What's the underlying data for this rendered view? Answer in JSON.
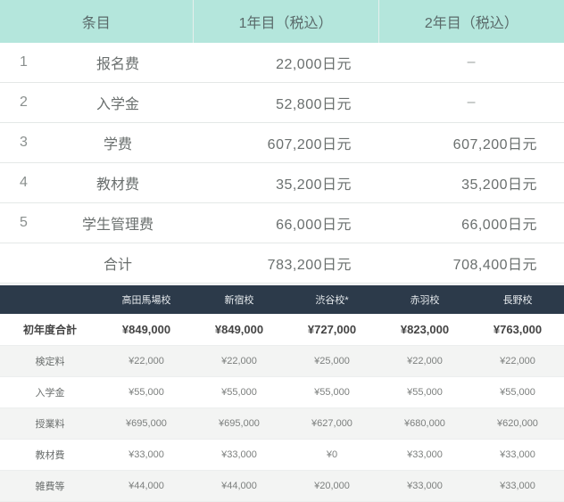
{
  "upper_table": {
    "headers": [
      "条目",
      "1年目（税込）",
      "2年目（税込）"
    ],
    "rows": [
      {
        "idx": "1",
        "name": "报名费",
        "y1": "22,000日元",
        "y2": "–"
      },
      {
        "idx": "2",
        "name": "入学金",
        "y1": "52,800日元",
        "y2": "–"
      },
      {
        "idx": "3",
        "name": "学费",
        "y1": "607,200日元",
        "y2": "607,200日元"
      },
      {
        "idx": "4",
        "name": "教材费",
        "y1": "35,200日元",
        "y2": "35,200日元"
      },
      {
        "idx": "5",
        "name": "学生管理费",
        "y1": "66,000日元",
        "y2": "66,000日元"
      },
      {
        "idx": "",
        "name": "合计",
        "y1": "783,200日元",
        "y2": "708,400日元"
      }
    ],
    "colors": {
      "header_bg": "#b4e6dc",
      "border": "#e4e8e7",
      "text": "#6a6f6e"
    }
  },
  "lower_table": {
    "headers": [
      "",
      "高田馬場校",
      "新宿校",
      "渋谷校*",
      "赤羽校",
      "長野校"
    ],
    "rows": [
      {
        "label": "初年度合計",
        "v": [
          "¥849,000",
          "¥849,000",
          "¥727,000",
          "¥823,000",
          "¥763,000"
        ],
        "bold": true
      },
      {
        "label": "検定料",
        "v": [
          "¥22,000",
          "¥22,000",
          "¥25,000",
          "¥22,000",
          "¥22,000"
        ]
      },
      {
        "label": "入学金",
        "v": [
          "¥55,000",
          "¥55,000",
          "¥55,000",
          "¥55,000",
          "¥55,000"
        ]
      },
      {
        "label": "授業料",
        "v": [
          "¥695,000",
          "¥695,000",
          "¥627,000",
          "¥680,000",
          "¥620,000"
        ]
      },
      {
        "label": "教材費",
        "v": [
          "¥33,000",
          "¥33,000",
          "¥0",
          "¥33,000",
          "¥33,000"
        ]
      },
      {
        "label": "雑費等",
        "v": [
          "¥44,000",
          "¥44,000",
          "¥20,000",
          "¥33,000",
          "¥33,000"
        ]
      }
    ],
    "colors": {
      "header_bg": "#2c3a4a",
      "header_fg": "#e8ecef",
      "zebra_bg": "#f3f4f3",
      "border": "#eceeee"
    }
  }
}
